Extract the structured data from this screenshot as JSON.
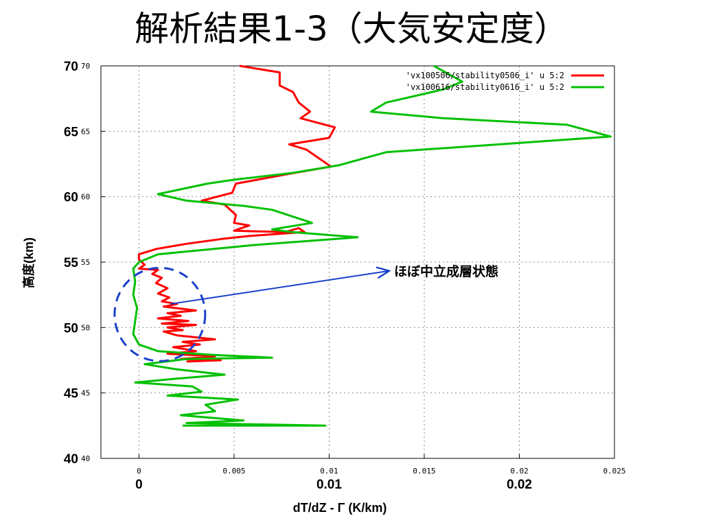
{
  "slide": {
    "title": "解析結果1-3（大気安定度）"
  },
  "chart_data": {
    "type": "line",
    "orientation": "profile",
    "xlabel": "dT/dZ - Γ (K/km)",
    "ylabel": "高度(km)",
    "xlim": [
      -0.002,
      0.025
    ],
    "ylim": [
      40,
      70
    ],
    "grid": true,
    "legend_position": "top-right",
    "x_ticks_small": [
      "0",
      "0.005",
      "0.01",
      "0.015",
      "0.02",
      "0.025"
    ],
    "x_ticks_large": [
      "0",
      "0.01",
      "0.02"
    ],
    "y_ticks_small": [
      "40",
      "45",
      "50",
      "55",
      "60",
      "65",
      "70"
    ],
    "y_ticks_large": [
      "40",
      "45",
      "50",
      "55",
      "60",
      "65",
      "70"
    ],
    "annotation": {
      "text": "ほぼ中立成層状態",
      "points_to": [
        0.0015,
        51.8
      ],
      "circle_center": [
        0.0011,
        51.0
      ]
    },
    "series": [
      {
        "name": "'vx100506/stability0506_i' u 5:2",
        "color": "#ff0000",
        "points": [
          [
            0.0053,
            70.0
          ],
          [
            0.0074,
            69.5
          ],
          [
            0.0074,
            68.5
          ],
          [
            0.0081,
            68.0
          ],
          [
            0.0084,
            67.2
          ],
          [
            0.009,
            66.5
          ],
          [
            0.0085,
            66.0
          ],
          [
            0.0103,
            65.3
          ],
          [
            0.01,
            64.5
          ],
          [
            0.0079,
            64.0
          ],
          [
            0.0088,
            63.6
          ],
          [
            0.0101,
            62.3
          ],
          [
            0.0081,
            61.8
          ],
          [
            0.0051,
            61.0
          ],
          [
            0.0049,
            60.3
          ],
          [
            0.0033,
            59.7
          ],
          [
            0.0045,
            59.4
          ],
          [
            0.0051,
            58.6
          ],
          [
            0.005,
            58.0
          ],
          [
            0.0058,
            57.8
          ],
          [
            0.005,
            57.4
          ],
          [
            0.0075,
            57.3
          ],
          [
            0.0077,
            57.3
          ],
          [
            0.0084,
            57.6
          ],
          [
            0.0087,
            57.3
          ],
          [
            0.0058,
            57.0
          ],
          [
            0.0045,
            56.8
          ],
          [
            0.0025,
            56.4
          ],
          [
            0.0009,
            56.0
          ],
          [
            0.0,
            55.6
          ],
          [
            0.0,
            55.2
          ],
          [
            0.0003,
            54.8
          ],
          [
            0.0,
            54.5
          ],
          [
            0.001,
            54.4
          ],
          [
            0.0007,
            54.1
          ],
          [
            0.0012,
            53.8
          ],
          [
            0.0009,
            53.4
          ],
          [
            0.0015,
            53.0
          ],
          [
            0.001,
            52.6
          ],
          [
            0.0016,
            52.3
          ],
          [
            0.0012,
            52.0
          ],
          [
            0.002,
            51.8
          ],
          [
            0.0013,
            51.6
          ],
          [
            0.003,
            51.3
          ],
          [
            0.0015,
            51.1
          ],
          [
            0.0022,
            50.9
          ],
          [
            0.001,
            50.7
          ],
          [
            0.0026,
            50.5
          ],
          [
            0.0012,
            50.3
          ],
          [
            0.003,
            50.2
          ],
          [
            0.0015,
            50.0
          ],
          [
            0.0023,
            49.8
          ],
          [
            0.0013,
            49.7
          ],
          [
            0.002,
            49.4
          ],
          [
            0.004,
            49.1
          ],
          [
            0.0023,
            48.9
          ],
          [
            0.0032,
            48.7
          ],
          [
            0.0018,
            48.5
          ],
          [
            0.003,
            48.2
          ],
          [
            0.0015,
            48.0
          ],
          [
            0.004,
            47.8
          ],
          [
            0.0022,
            47.6
          ],
          [
            0.0043,
            47.5
          ],
          [
            0.0025,
            47.4
          ]
        ]
      },
      {
        "name": "'vx100616/stability0616_i' u 5:2",
        "color": "#00c000",
        "points": [
          [
            0.0155,
            70.0
          ],
          [
            0.017,
            68.8
          ],
          [
            0.016,
            68.2
          ],
          [
            0.013,
            67.2
          ],
          [
            0.0122,
            66.5
          ],
          [
            0.016,
            66.0
          ],
          [
            0.0225,
            65.5
          ],
          [
            0.0248,
            64.6
          ],
          [
            0.013,
            63.4
          ],
          [
            0.0105,
            62.4
          ],
          [
            0.008,
            61.8
          ],
          [
            0.005,
            61.3
          ],
          [
            0.0036,
            61.0
          ],
          [
            0.001,
            60.2
          ],
          [
            0.0025,
            59.7
          ],
          [
            0.0055,
            59.3
          ],
          [
            0.007,
            59.0
          ],
          [
            0.0091,
            58.0
          ],
          [
            0.007,
            57.5
          ],
          [
            0.008,
            57.3
          ],
          [
            0.0115,
            56.9
          ],
          [
            0.006,
            56.3
          ],
          [
            0.001,
            55.6
          ],
          [
            0.0,
            55.0
          ],
          [
            -0.0003,
            54.5
          ],
          [
            -0.0002,
            53.5
          ],
          [
            -0.0003,
            52.5
          ],
          [
            -0.0001,
            51.5
          ],
          [
            -0.0002,
            50.5
          ],
          [
            -0.0003,
            49.5
          ],
          [
            0.0,
            48.7
          ],
          [
            0.001,
            48.2
          ],
          [
            0.004,
            47.9
          ],
          [
            0.007,
            47.7
          ],
          [
            0.0025,
            47.6
          ],
          [
            0.0003,
            47.2
          ],
          [
            0.002,
            46.8
          ],
          [
            0.0045,
            46.4
          ],
          [
            0.002,
            46.1
          ],
          [
            -0.0002,
            45.8
          ],
          [
            0.0028,
            45.5
          ],
          [
            0.0033,
            45.1
          ],
          [
            0.0015,
            44.8
          ],
          [
            0.0052,
            44.5
          ],
          [
            0.0035,
            44.1
          ],
          [
            0.004,
            43.6
          ],
          [
            0.0022,
            43.3
          ],
          [
            0.0055,
            42.9
          ],
          [
            0.0025,
            42.7
          ],
          [
            0.0098,
            42.5
          ],
          [
            0.0023,
            42.5
          ]
        ]
      }
    ]
  }
}
